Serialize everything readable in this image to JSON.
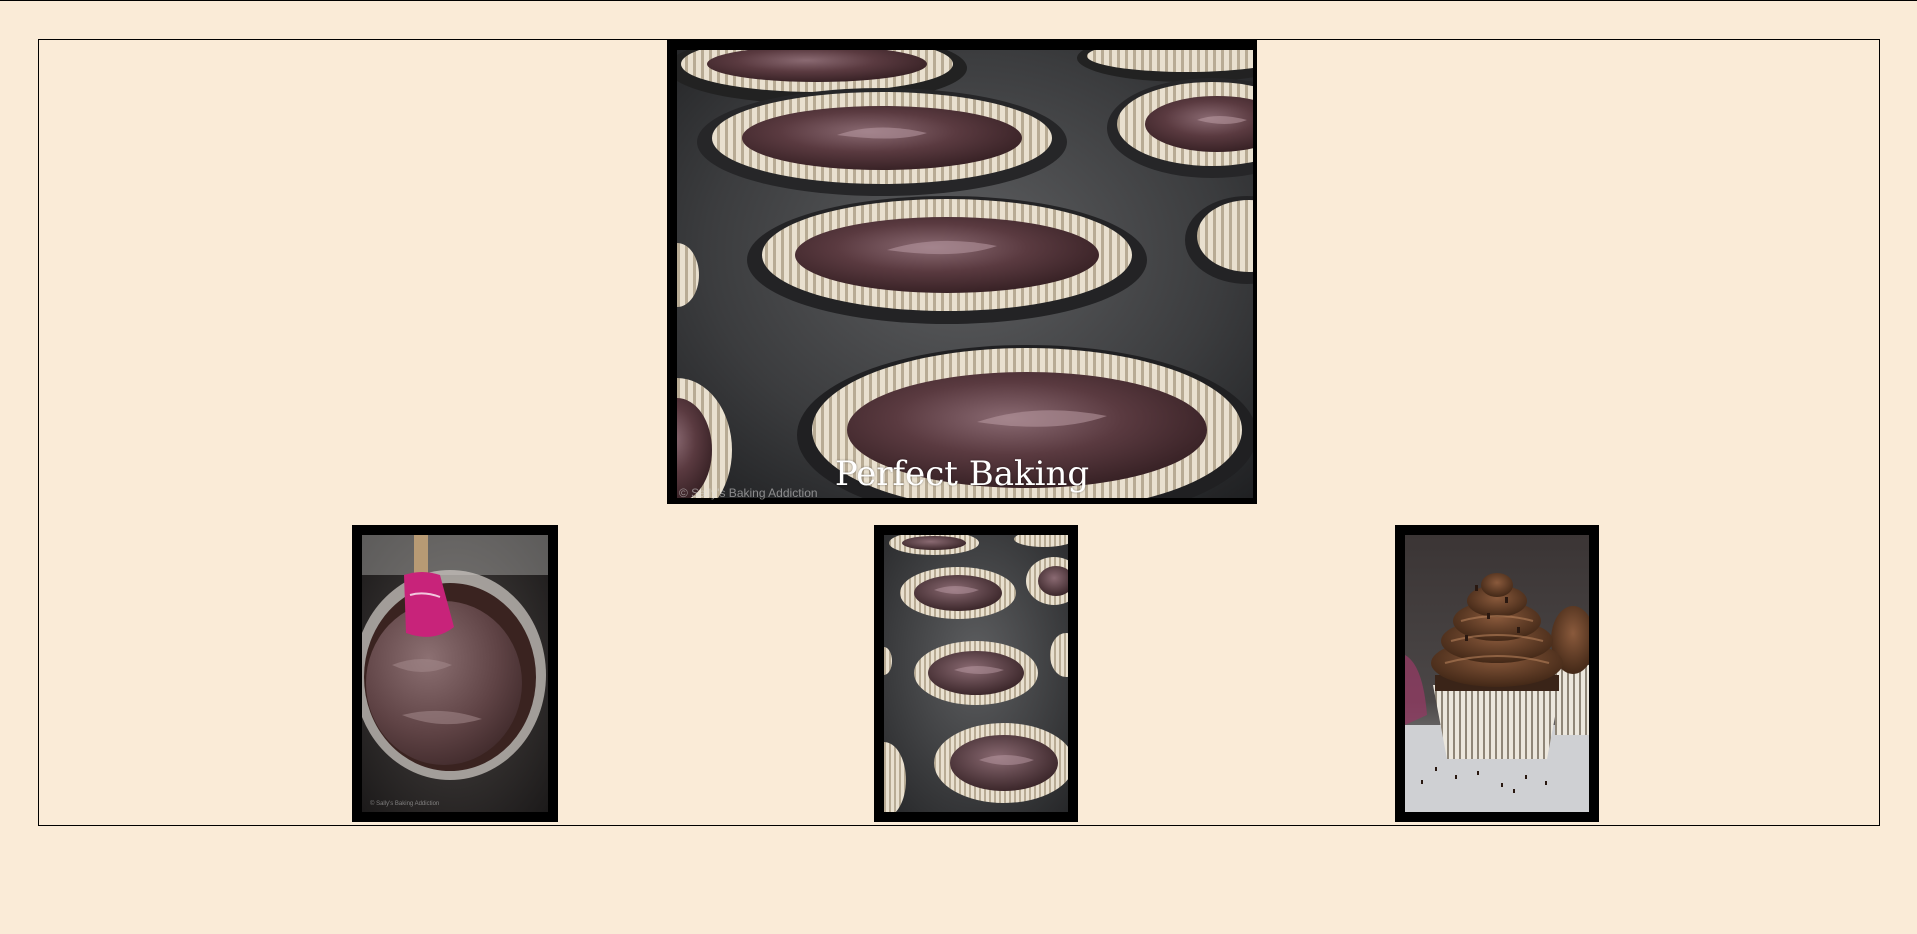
{
  "gallery": {
    "main": {
      "caption": "Perfect Baking",
      "watermark": "© Sally's Baking Addiction",
      "subject": "cupcake-pan-with-batter"
    },
    "thumbnails": [
      {
        "subject": "batter-bowl-with-spatula",
        "watermark": "© Sally's Baking Addiction"
      },
      {
        "subject": "cupcake-pan-with-batter",
        "watermark": ""
      },
      {
        "subject": "frosted-chocolate-cupcake",
        "watermark": ""
      }
    ]
  },
  "colors": {
    "page_background": "#faebd7",
    "frame_border": "#000000",
    "caption_text": "#ffffff"
  }
}
